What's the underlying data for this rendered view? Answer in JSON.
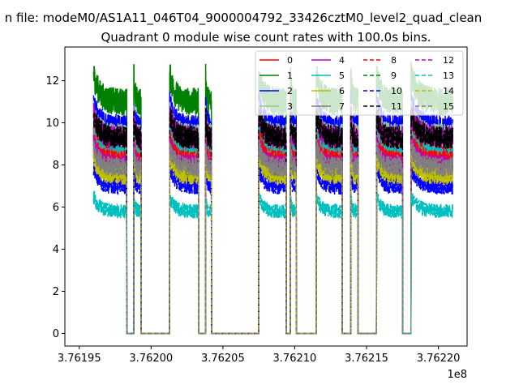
{
  "chart_data": {
    "type": "line",
    "suptitle": "n file: modeM0/AS1A11_046T04_9000004792_33426cztM0_level2_quad_clean",
    "title": "Quadrant 0 module wise count rates with 100.0s bins.",
    "xlabel": "",
    "ylabel": "",
    "x_offset_label": "1e8",
    "xlim": [
      3.76194,
      3.76222
    ],
    "ylim": [
      -0.6,
      13.6
    ],
    "x_ticks": [
      3.76195,
      3.762,
      3.76205,
      3.7621,
      3.76215,
      3.7622
    ],
    "x_tick_labels": [
      "3.76195",
      "3.76200",
      "3.76205",
      "3.76210",
      "3.76215",
      "3.76220"
    ],
    "y_ticks": [
      0,
      2,
      4,
      6,
      8,
      10,
      12
    ],
    "y_tick_labels": [
      "0",
      "2",
      "4",
      "6",
      "8",
      "10",
      "12"
    ],
    "grid": false,
    "legend_position": "top-right",
    "on_intervals": [
      [
        3.76196,
        3.761983
      ],
      [
        3.761988,
        3.761993
      ],
      [
        3.762013,
        3.762033
      ],
      [
        3.762038,
        3.762042
      ],
      [
        3.762075,
        3.762094
      ],
      [
        3.762097,
        3.762101
      ],
      [
        3.762115,
        3.762133
      ],
      [
        3.762139,
        3.762144
      ],
      [
        3.762157,
        3.762175
      ],
      [
        3.762181,
        3.76221
      ]
    ],
    "series": [
      {
        "name": "0",
        "color": "#ff0000",
        "dash": "solid",
        "level": 8.6
      },
      {
        "name": "1",
        "color": "#008000",
        "dash": "solid",
        "level": 11.0
      },
      {
        "name": "2",
        "color": "#0000ff",
        "dash": "solid",
        "level": 9.8
      },
      {
        "name": "3",
        "color": "#90c890",
        "dash": "solid",
        "level": 9.4
      },
      {
        "name": "4",
        "color": "#bf00bf",
        "dash": "solid",
        "level": 9.3
      },
      {
        "name": "5",
        "color": "#00bfbf",
        "dash": "solid",
        "level": 8.4
      },
      {
        "name": "6",
        "color": "#bfbf00",
        "dash": "solid",
        "level": 7.8
      },
      {
        "name": "7",
        "color": "#808080",
        "dash": "solid",
        "level": 8.2
      },
      {
        "name": "8",
        "color": "#ff0000",
        "dash": "dashed",
        "level": 8.2
      },
      {
        "name": "9",
        "color": "#008000",
        "dash": "dashed",
        "level": 7.7
      },
      {
        "name": "10",
        "color": "#0000ff",
        "dash": "dashed",
        "level": 7.0
      },
      {
        "name": "11",
        "color": "#000000",
        "dash": "dashed",
        "level": 9.3
      },
      {
        "name": "12",
        "color": "#bf00bf",
        "dash": "dashed",
        "level": 8.0
      },
      {
        "name": "13",
        "color": "#00bfbf",
        "dash": "dashed",
        "level": 5.8
      },
      {
        "name": "14",
        "color": "#bfbf00",
        "dash": "dashed",
        "level": 7.5
      },
      {
        "name": "15",
        "color": "#808080",
        "dash": "dashed",
        "level": 7.9
      }
    ]
  }
}
